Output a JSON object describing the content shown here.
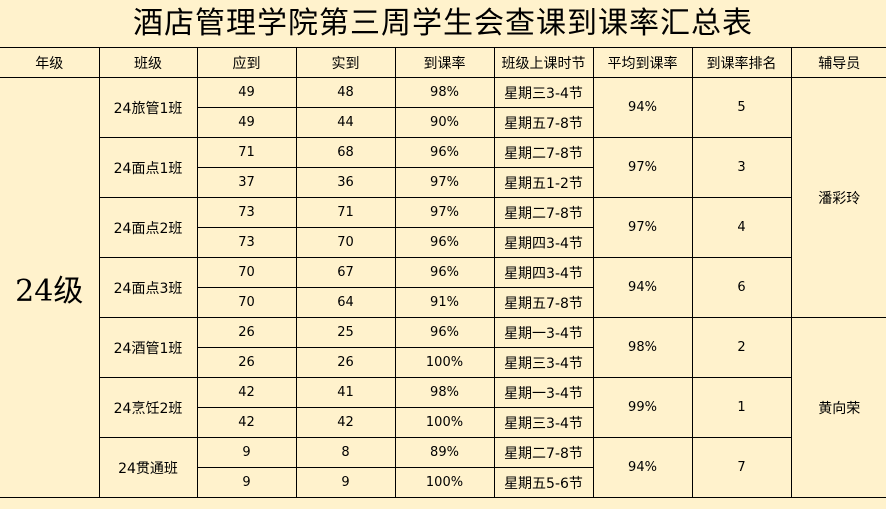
{
  "title": "酒店管理学院第三周学生会查课到课率汇总表",
  "headers": [
    "年级",
    "班级",
    "应到",
    "实到",
    "到课率",
    "班级上课时节",
    "平均到课率",
    "到课率排名",
    "辅导员"
  ],
  "grade": "24级",
  "classes": [
    {
      "name": "24旅管1班",
      "avg": "94%",
      "rank": "5",
      "sessions": [
        {
          "expected": "49",
          "actual": "48",
          "rate": "98%",
          "time": "星期三3-4节"
        },
        {
          "expected": "49",
          "actual": "44",
          "rate": "90%",
          "time": "星期五7-8节"
        }
      ]
    },
    {
      "name": "24面点1班",
      "avg": "97%",
      "rank": "3",
      "sessions": [
        {
          "expected": "71",
          "actual": "68",
          "rate": "96%",
          "time": "星期二7-8节"
        },
        {
          "expected": "37",
          "actual": "36",
          "rate": "97%",
          "time": "星期五1-2节"
        }
      ]
    },
    {
      "name": "24面点2班",
      "avg": "97%",
      "rank": "4",
      "sessions": [
        {
          "expected": "73",
          "actual": "71",
          "rate": "97%",
          "time": "星期二7-8节"
        },
        {
          "expected": "73",
          "actual": "70",
          "rate": "96%",
          "time": "星期四3-4节"
        }
      ]
    },
    {
      "name": "24面点3班",
      "avg": "94%",
      "rank": "6",
      "sessions": [
        {
          "expected": "70",
          "actual": "67",
          "rate": "96%",
          "time": "星期四3-4节"
        },
        {
          "expected": "70",
          "actual": "64",
          "rate": "91%",
          "time": "星期五7-8节"
        }
      ]
    },
    {
      "name": "24酒管1班",
      "avg": "98%",
      "rank": "2",
      "sessions": [
        {
          "expected": "26",
          "actual": "25",
          "rate": "96%",
          "time": "星期一3-4节"
        },
        {
          "expected": "26",
          "actual": "26",
          "rate": "100%",
          "time": "星期三3-4节"
        }
      ]
    },
    {
      "name": "24烹饪2班",
      "avg": "99%",
      "rank": "1",
      "sessions": [
        {
          "expected": "42",
          "actual": "41",
          "rate": "98%",
          "time": "星期一3-4节"
        },
        {
          "expected": "42",
          "actual": "42",
          "rate": "100%",
          "time": "星期三3-4节"
        }
      ]
    },
    {
      "name": "24贯通班",
      "avg": "94%",
      "rank": "7",
      "sessions": [
        {
          "expected": "9",
          "actual": "8",
          "rate": "89%",
          "time": "星期二7-8节"
        },
        {
          "expected": "9",
          "actual": "9",
          "rate": "100%",
          "time": "星期五5-6节"
        }
      ]
    }
  ],
  "tutors": [
    {
      "name": "潘彩玲",
      "class_count": 4
    },
    {
      "name": "黄向荣",
      "class_count": 3
    }
  ],
  "colors": {
    "background": "#FFF2CC",
    "border": "#000000"
  }
}
